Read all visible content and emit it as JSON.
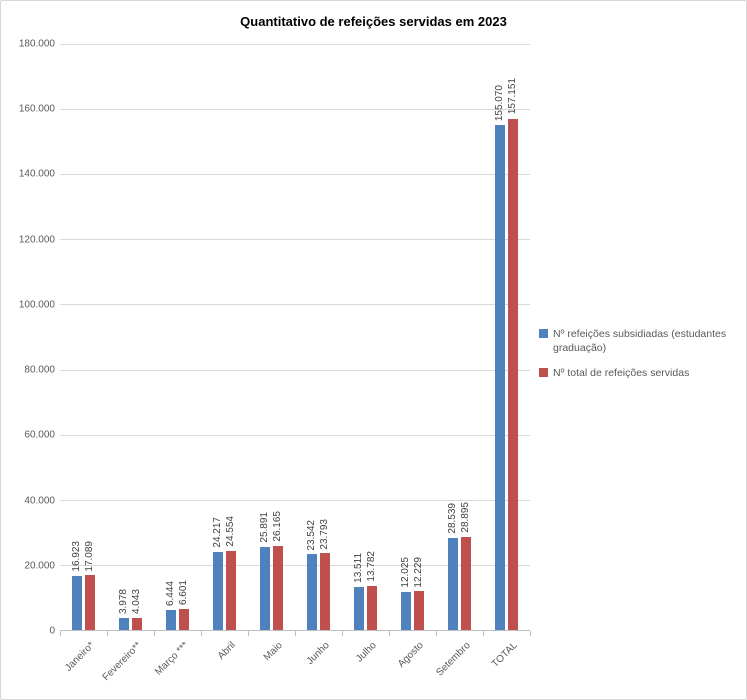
{
  "chart_data": {
    "type": "bar",
    "title": "Quantitativo de refeições servidas em 2023",
    "categories": [
      "Janeiro*",
      "Fevereiro**",
      "Março ***",
      "Abril",
      "Maio",
      "Junho",
      "Julho",
      "Agosto",
      "Setembro",
      "TOTAL"
    ],
    "series": [
      {
        "name": "Nº refeições subsidiadas (estudantes graduação)",
        "color": "#4F81BD",
        "values": [
          16923,
          3978,
          6444,
          24217,
          25891,
          23542,
          13511,
          12025,
          28539,
          155070
        ],
        "labels": [
          "16.923",
          "3.978",
          "6.444",
          "24.217",
          "25.891",
          "23.542",
          "13.511",
          "12.025",
          "28.539",
          "155.070"
        ]
      },
      {
        "name": "Nº total de refeições servidas",
        "color": "#C0504D",
        "values": [
          17089,
          4043,
          6601,
          24554,
          26165,
          23793,
          13782,
          12229,
          28895,
          157151
        ],
        "labels": [
          "17.089",
          "4.043",
          "6.601",
          "24.554",
          "26.165",
          "23.793",
          "13.782",
          "12.229",
          "28.895",
          "157.151"
        ]
      }
    ],
    "ylim": [
      0,
      180000
    ],
    "ytick_step": 20000,
    "ytick_labels": [
      "0",
      "20.000",
      "40.000",
      "60.000",
      "80.000",
      "100.000",
      "120.000",
      "140.000",
      "160.000",
      "180.000"
    ],
    "grid": true,
    "legend_position": "right",
    "data_labels": true,
    "data_label_rotation": 90,
    "x_label_rotation": 45,
    "number_format": "thousands-dot"
  },
  "colors": {
    "series1": "#4F81BD",
    "series2": "#C0504D",
    "gridline": "#D9D9D9",
    "axis_line": "#BFBFBF",
    "axis_text": "#595959",
    "data_label_text": "#404040",
    "title_text": "#000000",
    "chart_border": "#D7D7D7",
    "background": "#FFFFFF"
  }
}
